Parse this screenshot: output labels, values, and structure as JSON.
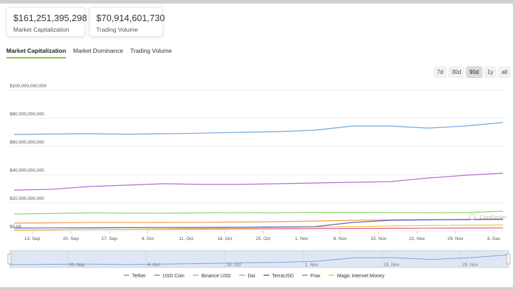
{
  "stats": {
    "market_cap": {
      "value": "$161,251,395,298",
      "label": "Market Capitalization"
    },
    "volume": {
      "value": "$70,914,601,730",
      "label": "Trading Volume"
    }
  },
  "tabs": [
    {
      "label": "Market Capitalization",
      "active": true
    },
    {
      "label": "Market Dominance",
      "active": false
    },
    {
      "label": "Trading Volume",
      "active": false
    }
  ],
  "ranges": [
    {
      "label": "7d",
      "active": false
    },
    {
      "label": "30d",
      "active": false
    },
    {
      "label": "90d",
      "active": true
    },
    {
      "label": "1y",
      "active": false
    },
    {
      "label": "all",
      "active": false
    }
  ],
  "watermark": "CoinGecko",
  "chart_data": {
    "type": "line",
    "yticks": [
      "$100,000,000,000",
      "$80,000,000,000",
      "$60,000,000,000",
      "$40,000,000,000",
      "$20,000,000,000",
      "$0.00"
    ],
    "ylim": [
      0,
      100000000000
    ],
    "xticks": [
      "13. Sep",
      "20. Sep",
      "27. Sep",
      "4. Oct",
      "11. Oct",
      "18. Oct",
      "25. Oct",
      "1. Nov",
      "8. Nov",
      "15. Nov",
      "22. Nov",
      "29. Nov",
      "6. Dec"
    ],
    "navigator_ticks": [
      "20. Sep",
      "4. Oct",
      "18. Oct",
      "1. Nov",
      "15. Nov",
      "29. Nov"
    ],
    "series": [
      {
        "name": "Tether",
        "color": "#6ea8dc",
        "values": [
          68.5,
          68.8,
          69.0,
          68.7,
          69.0,
          69.4,
          70.0,
          70.5,
          71.5,
          74.5,
          74.5,
          73.0,
          74.5,
          77.0
        ]
      },
      {
        "name": "USD Coin",
        "color": "#b46ad8",
        "values": [
          29.0,
          29.5,
          31.5,
          32.5,
          33.5,
          33.0,
          33.0,
          33.5,
          34.0,
          34.5,
          35.0,
          37.5,
          39.5,
          41.0
        ]
      },
      {
        "name": "Binance USD",
        "color": "#8fd16c",
        "values": [
          12.0,
          12.3,
          12.8,
          12.6,
          12.5,
          12.8,
          12.9,
          12.8,
          13.2,
          13.2,
          13.0,
          12.8,
          13.0,
          14.0
        ]
      },
      {
        "name": "Dai",
        "color": "#f39c4a",
        "values": [
          5.5,
          5.7,
          5.9,
          5.9,
          6.0,
          6.1,
          6.3,
          6.5,
          7.0,
          7.5,
          7.8,
          8.0,
          8.2,
          8.5
        ]
      },
      {
        "name": "TerraUSD",
        "color": "#5b5fc7",
        "values": [
          2.0,
          2.1,
          2.2,
          2.3,
          2.4,
          2.5,
          2.6,
          2.8,
          3.0,
          6.0,
          7.5,
          7.8,
          8.0,
          8.2
        ]
      },
      {
        "name": "Frax",
        "color": "#e8548a",
        "values": [
          0.5,
          0.7,
          1.0,
          1.1,
          1.2,
          1.3,
          1.4,
          1.5,
          1.6,
          1.7,
          1.8,
          1.9,
          2.0,
          2.1
        ]
      },
      {
        "name": "Magic Internet Money",
        "color": "#e6cf3c",
        "values": [
          0.4,
          0.6,
          1.0,
          1.2,
          1.5,
          1.8,
          2.0,
          2.3,
          2.6,
          3.0,
          3.5,
          3.8,
          4.0,
          4.2
        ]
      }
    ]
  }
}
